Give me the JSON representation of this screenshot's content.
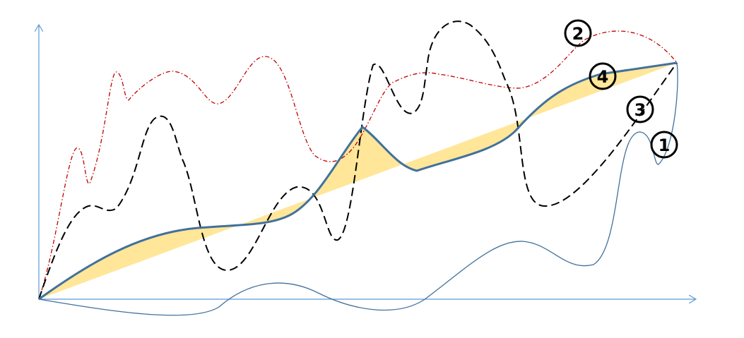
{
  "colors": {
    "axis": "#5b9bd5",
    "curve_1": "#41719c",
    "curve_2": "#c00000",
    "curve_3": "#000000",
    "curve_4": "#41719c",
    "fill": "#ffe699"
  },
  "labels": {
    "curve_1": "1",
    "curve_2": "2",
    "curve_3": "3",
    "curve_4": "4"
  }
}
